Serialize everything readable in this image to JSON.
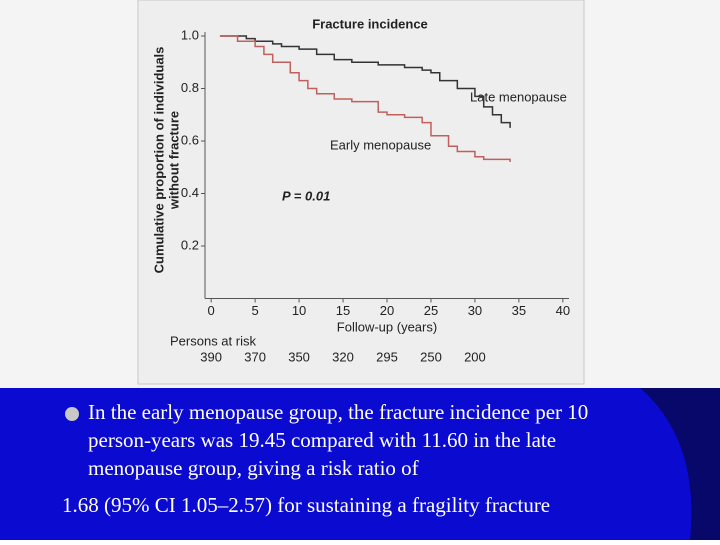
{
  "chart_data": {
    "type": "line",
    "step": true,
    "title": "Fracture incidence",
    "ylabel": [
      "Cumulative proportion of individuals",
      "without fracture"
    ],
    "xlabel": "Follow-up (years)",
    "xlim": [
      -0.7,
      40.7
    ],
    "xticks": [
      0,
      5,
      10,
      15,
      20,
      25,
      30,
      35,
      40
    ],
    "ylim": [
      0,
      1
    ],
    "yticks": [
      0.2,
      0.4,
      0.6,
      0.8,
      {
        "value": 1,
        "label": "1.0"
      }
    ],
    "series": [
      {
        "name": "Late menopause",
        "color": "#333333",
        "x": [
          1,
          4,
          5,
          7,
          8,
          10,
          12,
          14,
          16,
          19,
          22,
          24,
          25,
          26,
          28,
          30,
          31,
          32,
          33,
          34
        ],
        "values": [
          1.0,
          0.99,
          0.98,
          0.97,
          0.96,
          0.95,
          0.93,
          0.91,
          0.9,
          0.89,
          0.88,
          0.87,
          0.86,
          0.83,
          0.8,
          0.77,
          0.73,
          0.7,
          0.67,
          0.65
        ]
      },
      {
        "name": "Early menopause",
        "color": "#c0605c",
        "x": [
          1,
          3,
          5,
          6,
          7,
          9,
          10,
          11,
          12,
          14,
          16,
          19,
          20,
          22,
          24,
          25,
          27,
          28,
          30,
          31,
          34
        ],
        "values": [
          1.0,
          0.98,
          0.96,
          0.93,
          0.9,
          0.86,
          0.83,
          0.8,
          0.78,
          0.76,
          0.75,
          0.71,
          0.7,
          0.69,
          0.67,
          0.62,
          0.58,
          0.56,
          0.54,
          0.53,
          0.52
        ]
      }
    ],
    "annotations": [
      "P = 0.01"
    ],
    "at_risk": {
      "label": "Persons at risk",
      "x": [
        0,
        5,
        10,
        15,
        20,
        25,
        30
      ],
      "values": [
        390,
        370,
        350,
        320,
        295,
        250,
        200
      ]
    }
  },
  "slide": {
    "bullet": [
      "In the early menopause group, the fracture incidence per 10",
      "person-years was 19.45 compared with 11.60 in the late",
      "menopause group, giving a risk ratio of",
      "1.68 (95% CI 1.05–2.57) for sustaining a fragility fracture"
    ]
  }
}
